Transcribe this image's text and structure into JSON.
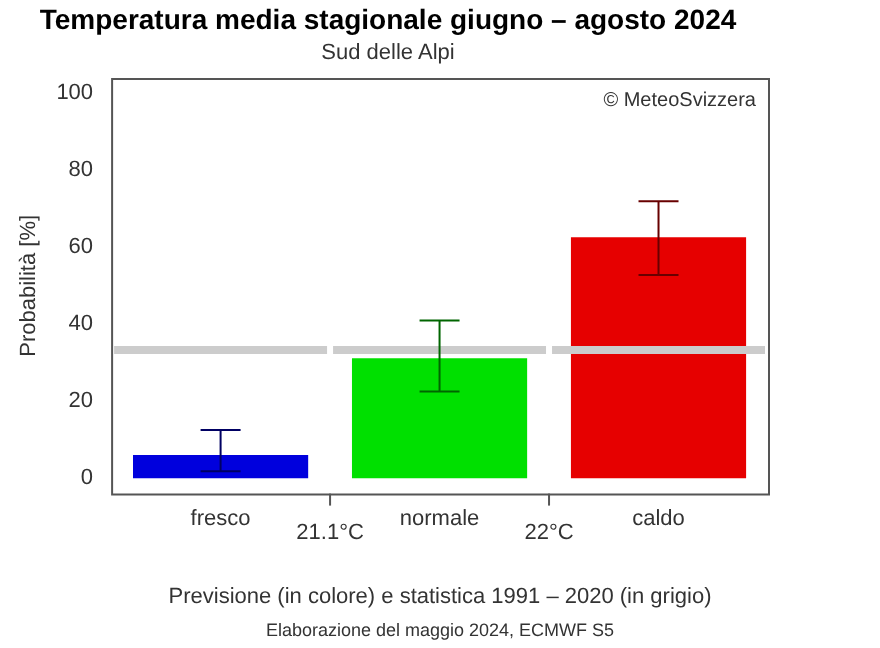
{
  "chart_data": {
    "type": "bar",
    "title": "Temperatura media stagionale giugno – agosto 2024",
    "subtitle": "Sud delle Alpi",
    "ylabel": "Probabilità [%]",
    "categories": [
      "fresco",
      "normale",
      "caldo"
    ],
    "values": [
      6,
      31.2,
      62.6
    ],
    "colors": [
      "#0000dd",
      "#00e000",
      "#e60000"
    ],
    "errors": [
      [
        1.8,
        12.5
      ],
      [
        22.5,
        41
      ],
      [
        52.8,
        72
      ]
    ],
    "ylim": [
      -4,
      104
    ],
    "yticks": [
      0,
      20,
      40,
      60,
      80,
      100
    ],
    "grid": false,
    "legend": false,
    "ref_lines": [
      {
        "axis": "y",
        "value": 33.3,
        "color": "#cccccc"
      }
    ],
    "annotations": [
      "© MeteoSvizzera",
      "21.1°C",
      "22°C",
      "Previsione (in colore) e statistica 1991 – 2020 (in grigio)",
      "Elaborazione del maggio 2024, ECMWF S5"
    ]
  }
}
